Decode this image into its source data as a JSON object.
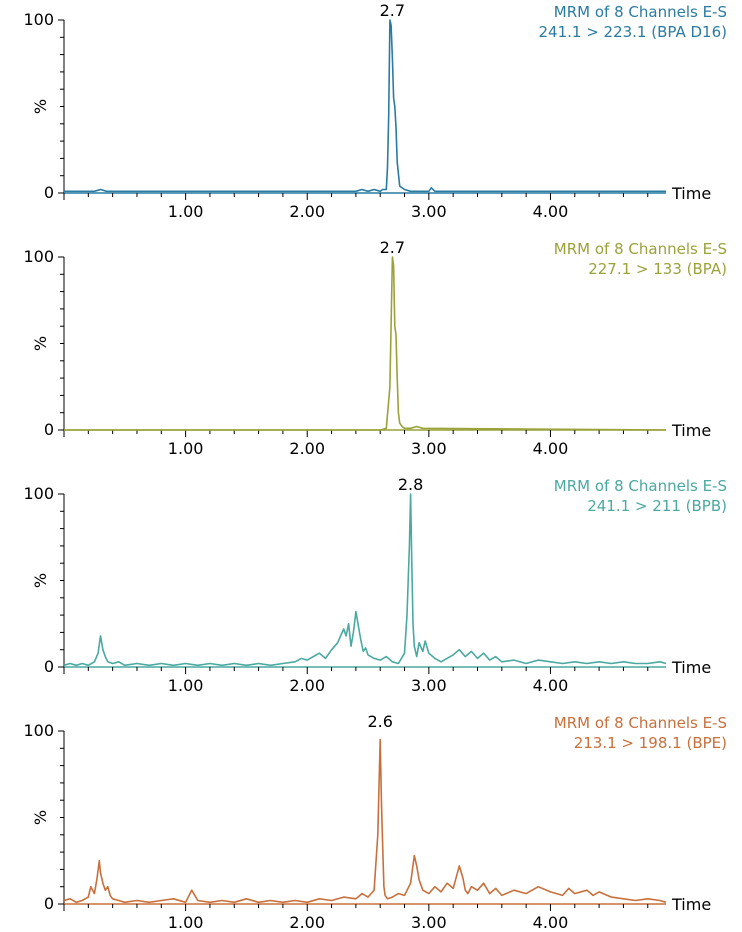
{
  "chart_data": [
    {
      "type": "line",
      "title_lines": [
        "MRM of 8 Channels E-S",
        "241.1 > 223.1 (BPA D16)"
      ],
      "color": "#2a7ba2",
      "ylabel": "%",
      "xlabel": "Time",
      "xlim": [
        0,
        4.95
      ],
      "ylim": [
        0,
        100
      ],
      "x_ticks": [
        "1.00",
        "2.00",
        "3.00",
        "4.00"
      ],
      "y_ticks": [
        "0",
        "100"
      ],
      "peak_label": "2.7",
      "peak_x": 2.7,
      "series": [
        {
          "x": [
            0,
            0.25,
            0.3,
            0.35,
            1.0,
            2.0,
            2.4,
            2.45,
            2.5,
            2.55,
            2.6,
            2.62,
            2.65,
            2.66,
            2.67,
            2.68,
            2.69,
            2.7,
            2.71,
            2.72,
            2.73,
            2.74,
            2.76,
            2.8,
            2.85,
            3.0,
            3.02,
            3.05,
            4.0,
            4.95
          ],
          "y": [
            1,
            1,
            2,
            1,
            1,
            1,
            1,
            2,
            1,
            2,
            1,
            2,
            2,
            15,
            45,
            100,
            97,
            78,
            55,
            50,
            38,
            18,
            4,
            2,
            1,
            1,
            3,
            1,
            1,
            1
          ]
        }
      ]
    },
    {
      "type": "line",
      "title_lines": [
        "MRM of 8 Channels E-S",
        "227.1 > 133 (BPA)"
      ],
      "color": "#9aa23a",
      "ylabel": "%",
      "xlabel": "Time",
      "xlim": [
        0,
        4.95
      ],
      "ylim": [
        0,
        100
      ],
      "x_ticks": [
        "1.00",
        "2.00",
        "3.00",
        "4.00"
      ],
      "y_ticks": [
        "0",
        "100"
      ],
      "peak_label": "2.7",
      "peak_x": 2.7,
      "series": [
        {
          "x": [
            0,
            1.0,
            2.0,
            2.6,
            2.65,
            2.68,
            2.7,
            2.71,
            2.72,
            2.73,
            2.74,
            2.75,
            2.76,
            2.78,
            2.8,
            2.85,
            2.9,
            2.95,
            4.95
          ],
          "y": [
            0,
            0,
            0,
            0,
            1,
            25,
            100,
            95,
            60,
            55,
            30,
            10,
            4,
            2,
            1,
            1,
            2,
            1,
            0
          ]
        }
      ]
    },
    {
      "type": "line",
      "title_lines": [
        "MRM of 8 Channels E-S",
        "241.1 > 211 (BPB)"
      ],
      "color": "#4aa9a0",
      "ylabel": "%",
      "xlabel": "Time",
      "xlim": [
        0,
        4.95
      ],
      "ylim": [
        0,
        100
      ],
      "x_ticks": [
        "1.00",
        "2.00",
        "3.00",
        "4.00"
      ],
      "y_ticks": [
        "0",
        "100"
      ],
      "peak_label": "2.8",
      "peak_x": 2.85,
      "series": [
        {
          "x": [
            0,
            0.05,
            0.1,
            0.15,
            0.2,
            0.25,
            0.28,
            0.3,
            0.32,
            0.34,
            0.36,
            0.4,
            0.45,
            0.5,
            0.6,
            0.7,
            0.8,
            0.9,
            1.0,
            1.1,
            1.2,
            1.3,
            1.4,
            1.5,
            1.6,
            1.7,
            1.8,
            1.9,
            1.95,
            2.0,
            2.05,
            2.1,
            2.15,
            2.2,
            2.25,
            2.3,
            2.32,
            2.34,
            2.36,
            2.38,
            2.4,
            2.42,
            2.44,
            2.46,
            2.48,
            2.5,
            2.55,
            2.6,
            2.65,
            2.7,
            2.75,
            2.8,
            2.82,
            2.84,
            2.85,
            2.86,
            2.87,
            2.88,
            2.9,
            2.92,
            2.95,
            2.97,
            3.0,
            3.05,
            3.1,
            3.2,
            3.25,
            3.3,
            3.35,
            3.4,
            3.45,
            3.5,
            3.55,
            3.6,
            3.7,
            3.8,
            3.9,
            4.0,
            4.1,
            4.2,
            4.3,
            4.4,
            4.5,
            4.6,
            4.7,
            4.8,
            4.9,
            4.95
          ],
          "y": [
            1,
            2,
            1,
            2,
            1,
            3,
            8,
            18,
            10,
            6,
            3,
            2,
            3,
            1,
            2,
            1,
            2,
            1,
            2,
            1,
            2,
            1,
            2,
            1,
            2,
            1,
            2,
            3,
            5,
            4,
            6,
            8,
            5,
            10,
            14,
            22,
            18,
            25,
            12,
            20,
            32,
            24,
            16,
            9,
            11,
            7,
            5,
            4,
            6,
            3,
            2,
            8,
            30,
            70,
            100,
            60,
            25,
            12,
            6,
            14,
            9,
            15,
            8,
            5,
            3,
            7,
            10,
            6,
            9,
            5,
            8,
            4,
            6,
            3,
            4,
            2,
            4,
            3,
            2,
            3,
            2,
            3,
            2,
            3,
            2,
            2,
            3,
            2
          ]
        }
      ]
    },
    {
      "type": "line",
      "title_lines": [
        "MRM of 8 Channels E-S",
        "213.1 > 198.1 (BPE)"
      ],
      "color": "#c8703c",
      "ylabel": "%",
      "xlabel": "Time",
      "xlim": [
        0,
        4.95
      ],
      "ylim": [
        0,
        100
      ],
      "x_ticks": [
        "1.00",
        "2.00",
        "3.00",
        "4.00"
      ],
      "y_ticks": [
        "0",
        "100"
      ],
      "peak_label": "2.6",
      "peak_x": 2.6,
      "series": [
        {
          "x": [
            0,
            0.05,
            0.1,
            0.15,
            0.2,
            0.22,
            0.25,
            0.27,
            0.29,
            0.3,
            0.32,
            0.34,
            0.36,
            0.38,
            0.4,
            0.45,
            0.5,
            0.6,
            0.7,
            0.8,
            0.9,
            1.0,
            1.05,
            1.1,
            1.2,
            1.3,
            1.4,
            1.5,
            1.6,
            1.7,
            1.8,
            1.9,
            2.0,
            2.1,
            2.2,
            2.3,
            2.4,
            2.45,
            2.5,
            2.55,
            2.58,
            2.59,
            2.6,
            2.61,
            2.62,
            2.63,
            2.64,
            2.66,
            2.7,
            2.75,
            2.8,
            2.85,
            2.88,
            2.9,
            2.92,
            2.95,
            3.0,
            3.05,
            3.1,
            3.15,
            3.2,
            3.25,
            3.28,
            3.3,
            3.32,
            3.35,
            3.4,
            3.45,
            3.5,
            3.55,
            3.6,
            3.7,
            3.8,
            3.9,
            4.0,
            4.1,
            4.15,
            4.2,
            4.3,
            4.35,
            4.4,
            4.5,
            4.6,
            4.7,
            4.8,
            4.9,
            4.95
          ],
          "y": [
            2,
            3,
            1,
            2,
            4,
            10,
            6,
            14,
            25,
            18,
            12,
            8,
            10,
            5,
            3,
            2,
            1,
            2,
            1,
            2,
            3,
            1,
            8,
            2,
            1,
            2,
            1,
            3,
            1,
            2,
            1,
            2,
            1,
            3,
            2,
            4,
            3,
            6,
            4,
            8,
            40,
            68,
            95,
            60,
            35,
            10,
            5,
            3,
            4,
            6,
            5,
            12,
            28,
            22,
            14,
            8,
            6,
            10,
            7,
            12,
            9,
            22,
            15,
            8,
            6,
            10,
            8,
            12,
            6,
            9,
            5,
            8,
            6,
            10,
            7,
            5,
            9,
            6,
            8,
            5,
            7,
            4,
            3,
            2,
            3,
            2,
            1
          ]
        }
      ]
    }
  ]
}
